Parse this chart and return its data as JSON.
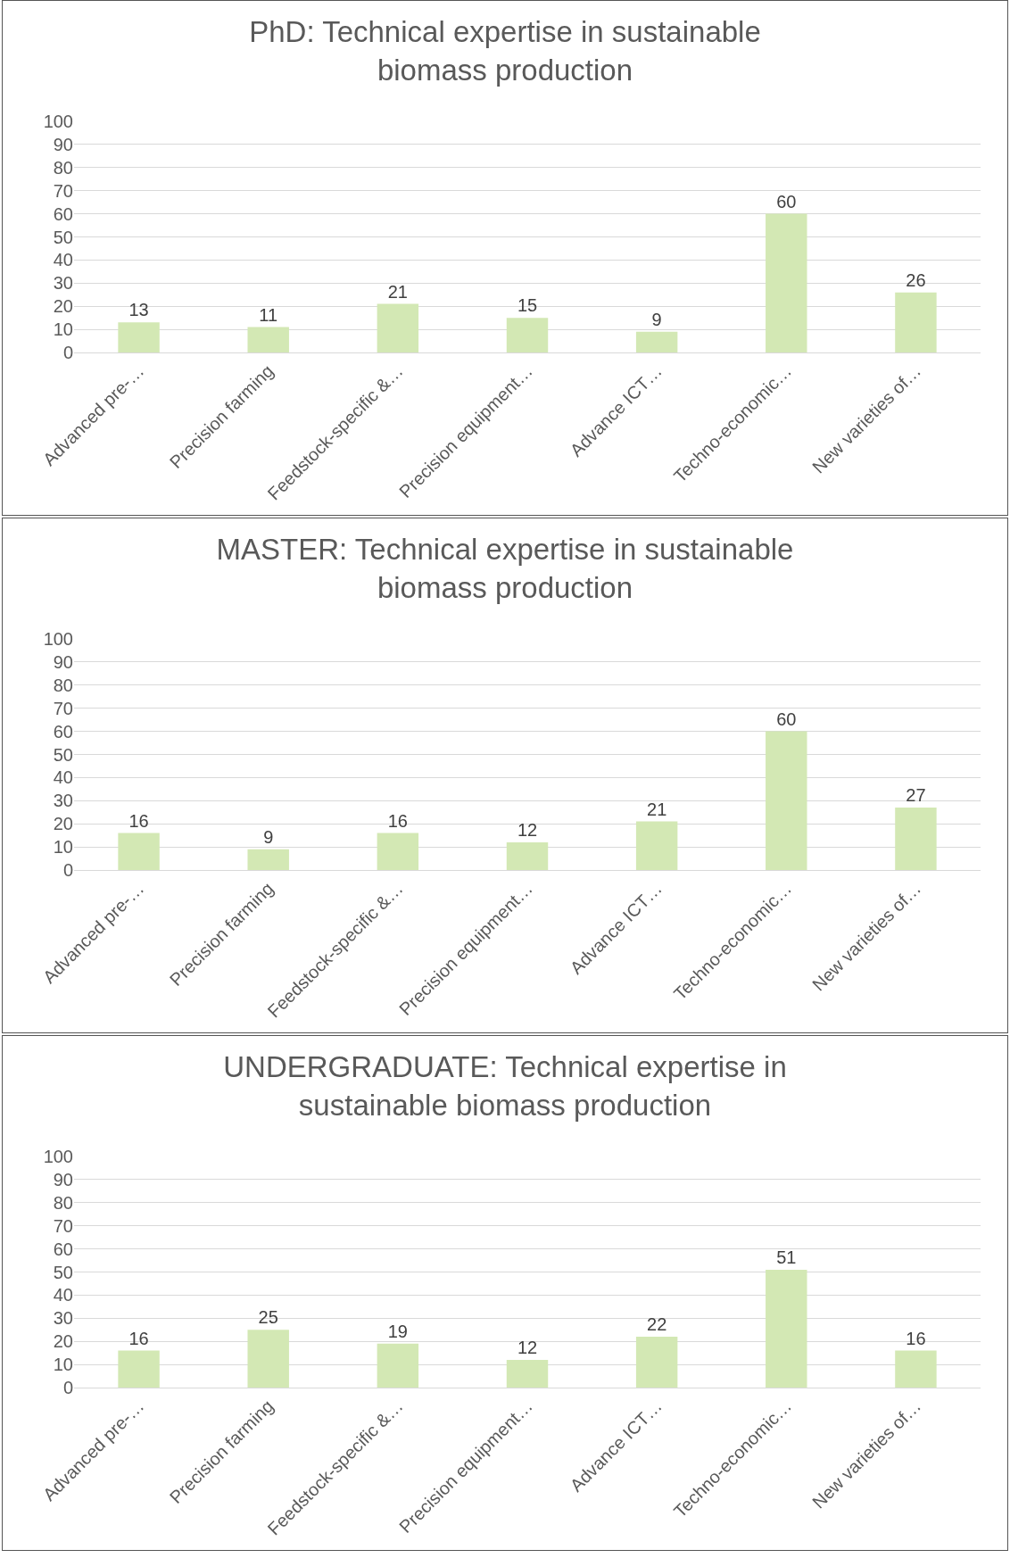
{
  "chart_data": [
    {
      "type": "bar",
      "title": "PhD: Technical expertise in sustainable biomass production",
      "categories": [
        "Advanced pre-…",
        "Precision farming",
        "Feedstock-specific &…",
        "Precision equipment…",
        "Advance ICT…",
        "Techno-economic…",
        "New varieties of…"
      ],
      "values": [
        13,
        11,
        21,
        15,
        9,
        60,
        26
      ],
      "color": "#d3e8b4",
      "ylim": [
        0,
        100
      ],
      "yticks": [
        0,
        10,
        20,
        30,
        40,
        50,
        60,
        70,
        80,
        90,
        100
      ],
      "grid": "y",
      "data_labels": true
    },
    {
      "type": "bar",
      "title": "MASTER: Technical expertise in sustainable biomass production",
      "categories": [
        "Advanced pre-…",
        "Precision farming",
        "Feedstock-specific &…",
        "Precision equipment…",
        "Advance ICT…",
        "Techno-economic…",
        "New varieties of…"
      ],
      "values": [
        16,
        9,
        16,
        12,
        21,
        60,
        27
      ],
      "color": "#d3e8b4",
      "ylim": [
        0,
        100
      ],
      "yticks": [
        0,
        10,
        20,
        30,
        40,
        50,
        60,
        70,
        80,
        90,
        100
      ],
      "grid": "y",
      "data_labels": true
    },
    {
      "type": "bar",
      "title": "UNDERGRADUATE: Technical expertise in sustainable biomass production",
      "categories": [
        "Advanced pre-…",
        "Precision farming",
        "Feedstock-specific &…",
        "Precision equipment…",
        "Advance ICT…",
        "Techno-economic…",
        "New varieties of…"
      ],
      "values": [
        16,
        25,
        19,
        12,
        22,
        51,
        16
      ],
      "color": "#d3e8b4",
      "ylim": [
        0,
        100
      ],
      "yticks": [
        0,
        10,
        20,
        30,
        40,
        50,
        60,
        70,
        80,
        90,
        100
      ],
      "grid": "y",
      "data_labels": true
    }
  ]
}
